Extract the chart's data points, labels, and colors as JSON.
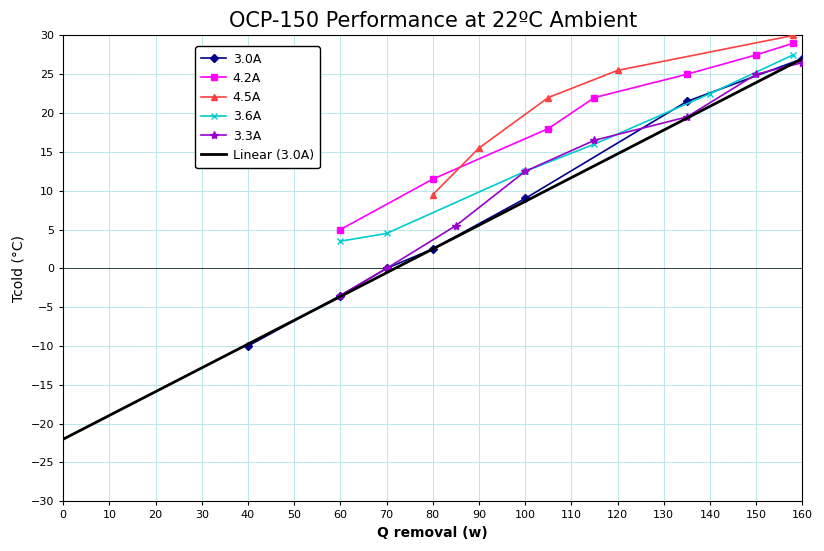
{
  "title": "OCP-150 Performance at 22ºC Ambient",
  "xlabel": "Q removal (w)",
  "ylabel": "Tcold (°C)",
  "xlim": [
    0,
    160
  ],
  "ylim": [
    -30,
    30
  ],
  "yticks": [
    -30,
    -25,
    -20,
    -15,
    -10,
    -5,
    0,
    5,
    10,
    15,
    20,
    25,
    30
  ],
  "xticks": [
    0,
    10,
    20,
    30,
    40,
    50,
    60,
    70,
    80,
    90,
    100,
    110,
    120,
    130,
    140,
    150,
    160
  ],
  "series": [
    {
      "label": "3.0A",
      "color": "#00008B",
      "marker": "D",
      "markersize": 4,
      "linewidth": 1.2,
      "x": [
        40,
        60,
        70,
        80,
        100,
        135,
        160
      ],
      "y": [
        -10,
        -3.5,
        0,
        2.5,
        9.0,
        21.5,
        27.0
      ]
    },
    {
      "label": "4.2A",
      "color": "#FF00FF",
      "marker": "s",
      "markersize": 4,
      "linewidth": 1.2,
      "x": [
        60,
        80,
        105,
        115,
        135,
        150,
        158
      ],
      "y": [
        5.0,
        11.5,
        18.0,
        22.0,
        25.0,
        27.5,
        29.0
      ]
    },
    {
      "label": "4.5A",
      "color": "#FF4040",
      "marker": "^",
      "markersize": 5,
      "linewidth": 1.2,
      "x": [
        80,
        90,
        105,
        120,
        158
      ],
      "y": [
        9.5,
        15.5,
        22.0,
        25.5,
        30.0
      ]
    },
    {
      "label": "3.6A",
      "color": "#00CCCC",
      "marker": "x",
      "markersize": 5,
      "linewidth": 1.2,
      "x": [
        60,
        70,
        100,
        115,
        140,
        158
      ],
      "y": [
        3.5,
        4.5,
        12.5,
        16.0,
        22.5,
        27.5
      ]
    },
    {
      "label": "3.3A",
      "color": "#9900CC",
      "marker": "*",
      "markersize": 6,
      "linewidth": 1.2,
      "x": [
        60,
        70,
        85,
        100,
        115,
        135,
        150,
        160
      ],
      "y": [
        -3.5,
        0.0,
        5.5,
        12.5,
        16.5,
        19.5,
        25.0,
        26.5
      ]
    }
  ],
  "linear_3A": {
    "label": "Linear (3.0A)",
    "color": "#000000",
    "linewidth": 2.0,
    "x": [
      0,
      160
    ],
    "y": [
      -22.0,
      27.0
    ]
  },
  "background_color": "#ffffff",
  "grid_color": "#b8e8e8",
  "legend_fontsize": 9,
  "title_fontsize": 15,
  "axis_label_fontsize": 10,
  "tick_labelsize": 8
}
